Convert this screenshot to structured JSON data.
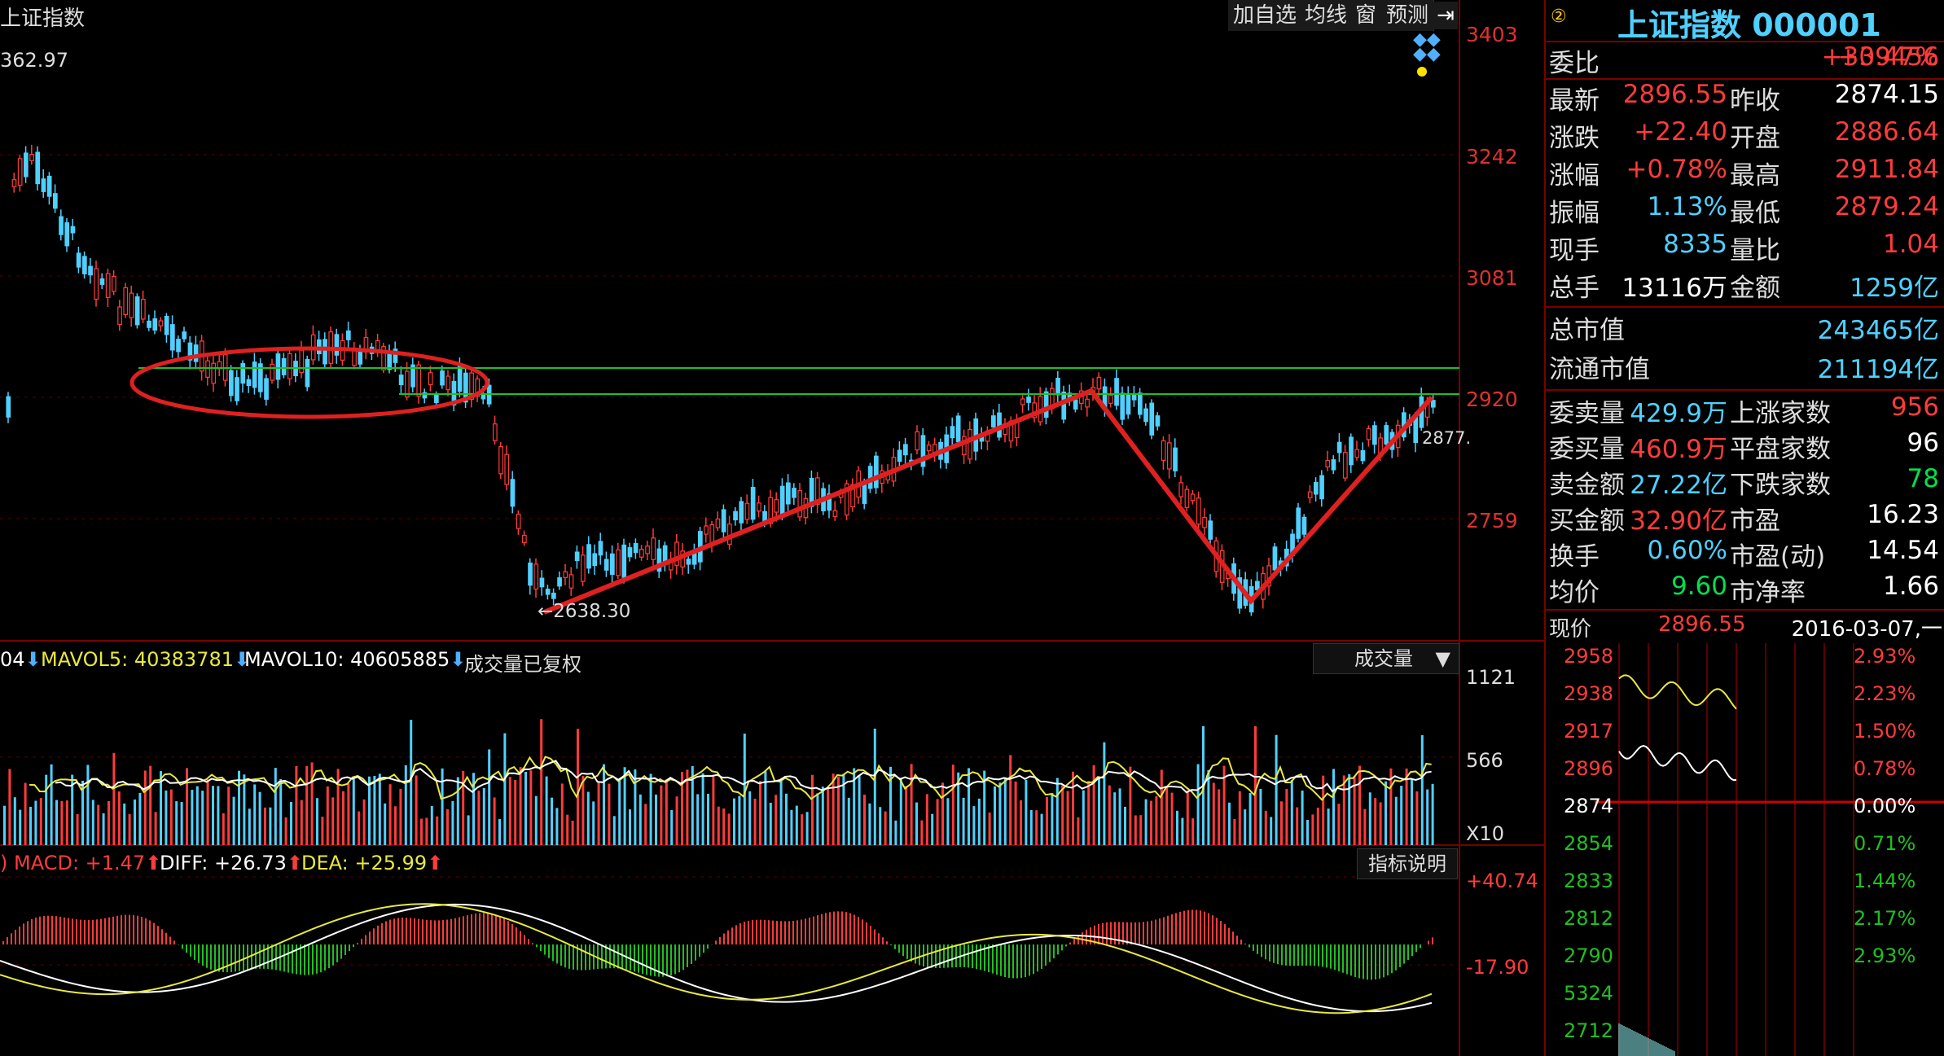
{
  "header": {
    "title": "上证指数",
    "buttons": [
      "加自选",
      "均线",
      "窗",
      "预测"
    ],
    "exit_icon": "exit-arrow-icon"
  },
  "main": {
    "top_value": "362.97",
    "y_axis": [
      "3403",
      "3242",
      "3081",
      "2920",
      "2759"
    ],
    "low_annotation": "2638.30",
    "last_annotation": "2877."
  },
  "volume": {
    "label_vol": "04",
    "mavol5": "MAVOL5: 40383781",
    "mavol10": "MAVOL10: 40605885",
    "note": "成交量已复权",
    "selector": "成交量",
    "y_axis": [
      "1121",
      "566",
      "X10"
    ]
  },
  "macd": {
    "macd": "MACD: +1.47",
    "diff": "DIFF: +26.73",
    "dea": "DEA: +25.99",
    "help": "指标说明",
    "y_axis": [
      "+40.74",
      "-17.90"
    ]
  },
  "quote": {
    "name": "上证指数 000001",
    "rows": [
      {
        "k": "委比",
        "v1": "+3.47%",
        "v1c": "red",
        "v2": "+309456",
        "v2c": "red"
      },
      {
        "k": "最新",
        "v1": "2896.55",
        "v1c": "red",
        "k2": "昨收",
        "v2": "2874.15",
        "v2c": "white"
      },
      {
        "k": "涨跌",
        "v1": "+22.40",
        "v1c": "red",
        "k2": "开盘",
        "v2": "2886.64",
        "v2c": "red"
      },
      {
        "k": "涨幅",
        "v1": "+0.78%",
        "v1c": "red",
        "k2": "最高",
        "v2": "2911.84",
        "v2c": "red"
      },
      {
        "k": "振幅",
        "v1": "1.13%",
        "v1c": "cyan",
        "k2": "最低",
        "v2": "2879.24",
        "v2c": "red"
      },
      {
        "k": "现手",
        "v1": "8335",
        "v1c": "cyan",
        "k2": "量比",
        "v2": "1.04",
        "v2c": "red"
      },
      {
        "k": "总手",
        "v1": "13116万",
        "v1c": "white",
        "k2": "金额",
        "v2": "1259亿",
        "v2c": "cyan"
      }
    ],
    "cap_rows": [
      {
        "k": "总市值",
        "v": "243465亿"
      },
      {
        "k": "流通市值",
        "v": "211194亿"
      }
    ],
    "order_rows": [
      {
        "k": "委卖量",
        "v1": "429.9万",
        "v1c": "cyan",
        "k2": "上涨家数",
        "v2": "956",
        "v2c": "red"
      },
      {
        "k": "委买量",
        "v1": "460.9万",
        "v1c": "red",
        "k2": "平盘家数",
        "v2": "96",
        "v2c": "white"
      },
      {
        "k": "卖金额",
        "v1": "27.22亿",
        "v1c": "cyan",
        "k2": "下跌家数",
        "v2": "78",
        "v2c": "green"
      },
      {
        "k": "买金额",
        "v1": "32.90亿",
        "v1c": "red",
        "k2": "市盈",
        "v2": "16.23",
        "v2c": "white"
      },
      {
        "k": "换手",
        "v1": "0.60%",
        "v1c": "cyan",
        "k2": "市盈(动)",
        "v2": "14.54",
        "v2c": "white"
      },
      {
        "k": "均价",
        "v1": "9.60",
        "v1c": "green",
        "k2": "市净率",
        "v2": "1.66",
        "v2c": "white"
      }
    ],
    "now_label": "现价",
    "now_value": "2896.55",
    "date": "2016-03-07,一"
  },
  "intraday": {
    "left_axis": [
      "2958",
      "2938",
      "2917",
      "2896",
      "2874",
      "2854",
      "2833",
      "2812",
      "2790",
      "5324",
      "2712"
    ],
    "right_axis": [
      "2.93%",
      "2.23%",
      "1.50%",
      "0.78%",
      "0.00%",
      "0.71%",
      "1.44%",
      "2.17%",
      "2.93%"
    ]
  },
  "colors": {
    "up": "#ff3b3b",
    "down": "#4fd0ff",
    "support_line": "#20c020",
    "trend_line": "#e02020",
    "ma_yellow": "#e8e840",
    "ma_white": "#ffffff"
  }
}
